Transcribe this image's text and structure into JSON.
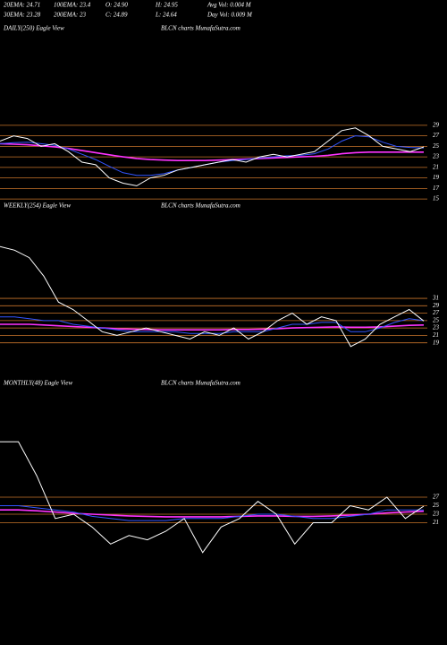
{
  "header": {
    "rows": [
      [
        "20EMA: 24.71",
        "100EMA: 23.4",
        "O: 24.90",
        "H: 24.95",
        "Avg Vol: 0.004  M"
      ],
      [
        "30EMA: 23.28",
        "200EMA: 23",
        "C: 24.89",
        "L: 24.64",
        "Day Vol: 0.009  M"
      ]
    ]
  },
  "chart_data": [
    {
      "type": "line",
      "title": "DAILY(250) Eagle View",
      "subtitle": "BLCN charts MunafaSutra.com",
      "ylim": [
        14,
        46
      ],
      "yticks": [
        29,
        27,
        25,
        23,
        21,
        19,
        17,
        15
      ],
      "grid": true,
      "grid_color": "#c8742a",
      "series": [
        {
          "color": "#ff33ff",
          "values": [
            25.5,
            25.4,
            25.3,
            25.1,
            24.9,
            24.6,
            24.2,
            23.8,
            23.4,
            23,
            22.7,
            22.5,
            22.4,
            22.3,
            22.3,
            22.3,
            22.4,
            22.5,
            22.6,
            22.7,
            22.8,
            22.9,
            23,
            23.1,
            23.3,
            23.6,
            23.8,
            23.9,
            23.9,
            23.9,
            23.9,
            23.9
          ]
        },
        {
          "color": "#3355ff",
          "values": [
            25.5,
            25.7,
            25.8,
            25.5,
            25.2,
            24.5,
            23.5,
            22.5,
            21.2,
            20,
            19.5,
            19.5,
            19.8,
            20.5,
            21,
            21.5,
            22,
            22.3,
            22.5,
            22.8,
            23,
            23.2,
            23.3,
            23.6,
            24.5,
            26,
            27,
            26.8,
            25.8,
            25,
            24.8,
            24.71
          ]
        },
        {
          "color": "#ffffff",
          "values": [
            26,
            27,
            26.5,
            25,
            25.5,
            24,
            22,
            21.5,
            19,
            18,
            17.5,
            19,
            19.5,
            20.5,
            21,
            21.5,
            22,
            22.5,
            22,
            23,
            23.5,
            23,
            23.5,
            24,
            26,
            28,
            28.5,
            27,
            25,
            24.5,
            24,
            24.89
          ]
        }
      ]
    },
    {
      "type": "line",
      "title": "WEEKLY(254) Eagle View",
      "subtitle": "BLCN charts MunafaSutra.com",
      "ylim": [
        9,
        54
      ],
      "yticks": [
        31,
        29,
        27,
        25,
        23,
        21,
        19
      ],
      "grid": true,
      "grid_color": "#c8742a",
      "series": [
        {
          "color": "#ff33ff",
          "values": [
            24,
            24,
            24,
            23.8,
            23.6,
            23.4,
            23.2,
            23,
            22.8,
            22.7,
            22.6,
            22.5,
            22.5,
            22.5,
            22.5,
            22.5,
            22.6,
            22.6,
            22.7,
            22.8,
            23,
            23.1,
            23.2,
            23.3,
            23.2,
            23.2,
            23.3,
            23.5,
            23.7,
            23.8
          ]
        },
        {
          "color": "#3355ff",
          "values": [
            26,
            26,
            25.5,
            25,
            25,
            24,
            23.5,
            23,
            22.5,
            22,
            22,
            22,
            22,
            21.5,
            21.5,
            21.5,
            22,
            22,
            22,
            23,
            24,
            24,
            24.5,
            24.5,
            22,
            22,
            23,
            24.5,
            25.5,
            25
          ]
        },
        {
          "color": "#ffffff",
          "values": [
            45,
            44,
            42,
            37,
            30,
            28,
            25,
            22,
            21,
            22,
            23,
            22,
            21,
            20,
            22,
            21,
            23,
            20,
            22,
            25,
            27,
            24,
            26,
            25,
            18,
            20,
            24,
            26,
            28,
            24.89
          ]
        }
      ]
    },
    {
      "type": "line",
      "title": "MONTHLY(48) Eagle View",
      "subtitle": "BLCN charts MunafaSutra.com",
      "ylim": [
        -6,
        52
      ],
      "yticks": [
        27,
        25,
        23,
        21
      ],
      "grid": true,
      "grid_color": "#c8742a",
      "series": [
        {
          "color": "#ff33ff",
          "values": [
            24,
            24,
            23.8,
            23.5,
            23.2,
            23,
            22.8,
            22.6,
            22.5,
            22.4,
            22.4,
            22.4,
            22.4,
            22.5,
            22.6,
            22.6,
            22.5,
            22.5,
            22.6,
            22.8,
            23,
            23.3,
            23.5,
            23.7
          ]
        },
        {
          "color": "#3355ff",
          "values": [
            25,
            25,
            24.5,
            24,
            23.5,
            22.5,
            22,
            21.5,
            21.5,
            21.5,
            22,
            22,
            22,
            22.5,
            23,
            23,
            22.5,
            22,
            22,
            22.5,
            23,
            24,
            24,
            24
          ]
        },
        {
          "color": "#ffffff",
          "values": [
            40,
            40,
            32,
            22,
            23,
            20,
            16,
            18,
            17,
            19,
            22,
            14,
            20,
            22,
            26,
            23,
            16,
            21,
            21,
            25,
            24,
            27,
            22,
            24.89
          ]
        }
      ]
    }
  ]
}
